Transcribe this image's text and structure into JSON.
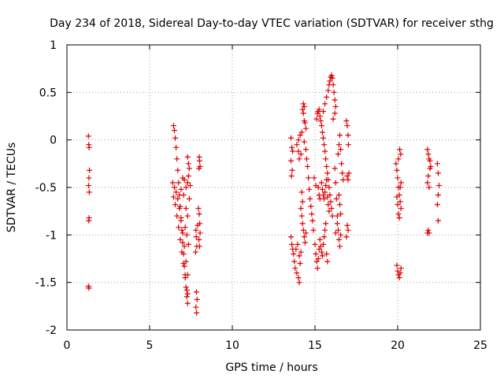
{
  "chart_data": {
    "type": "scatter",
    "title": "Day 234 of 2018, Sidereal Day-to-day VTEC variation (SDTVAR) for receiver sthg",
    "xlabel": "GPS time / hours",
    "ylabel": "SDTVAR / TECUs",
    "xlim": [
      0,
      25
    ],
    "ylim": [
      -2,
      1
    ],
    "xticks": [
      {
        "value": 0,
        "label": "0"
      },
      {
        "value": 5,
        "label": "5"
      },
      {
        "value": 10,
        "label": "10"
      },
      {
        "value": 15,
        "label": "15"
      },
      {
        "value": 20,
        "label": "20"
      },
      {
        "value": 25,
        "label": "25"
      }
    ],
    "yticks": [
      {
        "value": 1,
        "label": "1"
      },
      {
        "value": 0.5,
        "label": "0.5"
      },
      {
        "value": 0,
        "label": "0"
      },
      {
        "value": -0.5,
        "label": "-0.5"
      },
      {
        "value": -1,
        "label": "-1"
      },
      {
        "value": -1.5,
        "label": "-1.5"
      },
      {
        "value": -2,
        "label": "-2"
      }
    ],
    "grid": true,
    "marker": "+",
    "color": "#e00000",
    "series": [
      {
        "name": "sthg",
        "points": [
          [
            1.3,
            0.04
          ],
          [
            1.32,
            -0.05
          ],
          [
            1.34,
            -0.08
          ],
          [
            1.36,
            -0.32
          ],
          [
            1.33,
            -0.4
          ],
          [
            1.31,
            -0.48
          ],
          [
            1.35,
            -0.55
          ],
          [
            1.34,
            -0.82
          ],
          [
            1.32,
            -0.85
          ],
          [
            1.3,
            -1.54
          ],
          [
            1.33,
            -1.56
          ],
          [
            6.45,
            0.15
          ],
          [
            6.5,
            0.1
          ],
          [
            6.55,
            0.02
          ],
          [
            6.6,
            -0.08
          ],
          [
            6.65,
            -0.2
          ],
          [
            6.7,
            -0.32
          ],
          [
            6.75,
            -0.45
          ],
          [
            6.8,
            -0.58
          ],
          [
            6.85,
            -0.7
          ],
          [
            6.9,
            -0.82
          ],
          [
            6.95,
            -0.95
          ],
          [
            7.0,
            -1.08
          ],
          [
            7.05,
            -1.2
          ],
          [
            7.1,
            -1.33
          ],
          [
            7.15,
            -1.45
          ],
          [
            7.2,
            -1.55
          ],
          [
            7.25,
            -1.65
          ],
          [
            7.3,
            -1.72
          ],
          [
            6.4,
            -0.45
          ],
          [
            6.5,
            -0.5
          ],
          [
            6.6,
            -0.55
          ],
          [
            6.7,
            -0.62
          ],
          [
            6.8,
            -0.72
          ],
          [
            6.9,
            -0.85
          ],
          [
            7.0,
            -0.98
          ],
          [
            7.1,
            -1.12
          ],
          [
            7.2,
            -1.28
          ],
          [
            7.3,
            -1.42
          ],
          [
            6.45,
            -0.6
          ],
          [
            6.55,
            -0.68
          ],
          [
            6.65,
            -0.8
          ],
          [
            6.75,
            -0.92
          ],
          [
            6.85,
            -1.05
          ],
          [
            6.95,
            -1.18
          ],
          [
            7.05,
            -1.3
          ],
          [
            7.15,
            -1.42
          ],
          [
            7.25,
            -1.58
          ],
          [
            7.3,
            -1.62
          ],
          [
            7.1,
            -0.42
          ],
          [
            7.2,
            -0.5
          ],
          [
            7.3,
            -0.45
          ],
          [
            7.35,
            -0.38
          ],
          [
            7.35,
            -0.25
          ],
          [
            7.3,
            -0.18
          ],
          [
            7.2,
            -0.72
          ],
          [
            7.3,
            -0.8
          ],
          [
            7.4,
            -0.62
          ],
          [
            7.4,
            -0.3
          ],
          [
            7.45,
            -0.48
          ],
          [
            7.0,
            -0.4
          ],
          [
            6.9,
            -0.52
          ],
          [
            7.05,
            -0.58
          ],
          [
            7.15,
            -0.92
          ],
          [
            7.25,
            -1.0
          ],
          [
            7.35,
            -1.1
          ],
          [
            7.8,
            -0.95
          ],
          [
            7.82,
            -1.02
          ],
          [
            7.85,
            -1.12
          ],
          [
            7.78,
            -1.18
          ],
          [
            7.83,
            -1.6
          ],
          [
            7.87,
            -1.68
          ],
          [
            7.8,
            -1.76
          ],
          [
            7.84,
            -1.82
          ],
          [
            7.9,
            -0.9
          ],
          [
            8.0,
            -0.18
          ],
          [
            8.02,
            -0.22
          ],
          [
            8.05,
            -0.28
          ],
          [
            7.98,
            -0.3
          ],
          [
            8.0,
            -0.78
          ],
          [
            8.03,
            -0.88
          ],
          [
            8.05,
            -0.98
          ],
          [
            7.98,
            -1.05
          ],
          [
            8.02,
            -1.12
          ],
          [
            7.95,
            -0.72
          ],
          [
            13.55,
            0.02
          ],
          [
            13.6,
            -0.08
          ],
          [
            13.65,
            -0.12
          ],
          [
            13.55,
            -0.22
          ],
          [
            13.62,
            -0.32
          ],
          [
            13.58,
            -0.38
          ],
          [
            13.55,
            -1.02
          ],
          [
            13.6,
            -1.1
          ],
          [
            13.65,
            -1.15
          ],
          [
            13.7,
            -1.2
          ],
          [
            13.75,
            -1.28
          ],
          [
            13.8,
            -1.35
          ],
          [
            13.9,
            -1.4
          ],
          [
            14.0,
            -1.45
          ],
          [
            14.05,
            -1.5
          ],
          [
            13.85,
            -1.15
          ],
          [
            13.95,
            -1.1
          ],
          [
            14.05,
            -1.22
          ],
          [
            14.1,
            -1.3
          ],
          [
            14.15,
            -1.18
          ],
          [
            13.9,
            -0.05
          ],
          [
            14.0,
            0.0
          ],
          [
            14.1,
            0.05
          ],
          [
            14.0,
            -0.12
          ],
          [
            14.05,
            -0.2
          ],
          [
            14.15,
            -0.15
          ],
          [
            14.2,
            -0.55
          ],
          [
            14.25,
            -0.65
          ],
          [
            14.15,
            -0.72
          ],
          [
            14.2,
            -0.8
          ],
          [
            14.25,
            -0.88
          ],
          [
            14.3,
            -0.95
          ],
          [
            14.35,
            -1.02
          ],
          [
            14.4,
            -1.08
          ],
          [
            14.45,
            -0.98
          ],
          [
            14.25,
            0.32
          ],
          [
            14.3,
            0.38
          ],
          [
            14.35,
            0.35
          ],
          [
            14.3,
            0.28
          ],
          [
            14.35,
            0.2
          ],
          [
            14.4,
            0.18
          ],
          [
            14.45,
            0.12
          ],
          [
            14.2,
            0.08
          ],
          [
            14.35,
            -0.02
          ],
          [
            14.45,
            -0.1
          ],
          [
            14.5,
            -0.2
          ],
          [
            14.55,
            -0.28
          ],
          [
            14.6,
            -0.4
          ],
          [
            14.65,
            -0.52
          ],
          [
            14.7,
            -0.62
          ],
          [
            14.75,
            -0.7
          ],
          [
            14.8,
            -0.78
          ],
          [
            14.85,
            -0.85
          ],
          [
            14.9,
            -0.95
          ],
          [
            15.0,
            -1.1
          ],
          [
            15.05,
            -1.2
          ],
          [
            15.1,
            -1.28
          ],
          [
            15.15,
            -1.35
          ],
          [
            15.2,
            -1.25
          ],
          [
            15.25,
            -1.15
          ],
          [
            15.1,
            0.22
          ],
          [
            15.15,
            0.28
          ],
          [
            15.2,
            0.3
          ],
          [
            15.25,
            0.32
          ],
          [
            15.3,
            0.25
          ],
          [
            15.35,
            0.2
          ],
          [
            15.4,
            0.15
          ],
          [
            15.45,
            0.08
          ],
          [
            15.5,
            0.02
          ],
          [
            15.55,
            -0.05
          ],
          [
            15.6,
            -0.12
          ],
          [
            15.65,
            -0.2
          ],
          [
            15.7,
            -0.28
          ],
          [
            15.75,
            -0.35
          ],
          [
            15.8,
            -0.42
          ],
          [
            15.85,
            -0.5
          ],
          [
            15.9,
            -0.58
          ],
          [
            15.95,
            -0.65
          ],
          [
            16.0,
            -0.72
          ],
          [
            16.05,
            -0.8
          ],
          [
            15.5,
            0.3
          ],
          [
            15.6,
            0.38
          ],
          [
            15.7,
            0.45
          ],
          [
            15.8,
            0.52
          ],
          [
            15.85,
            0.58
          ],
          [
            15.9,
            0.62
          ],
          [
            15.95,
            0.66
          ],
          [
            16.0,
            0.68
          ],
          [
            16.05,
            0.65
          ],
          [
            16.1,
            0.58
          ],
          [
            16.15,
            0.5
          ],
          [
            16.2,
            0.42
          ],
          [
            16.25,
            0.35
          ],
          [
            16.2,
            0.28
          ],
          [
            16.1,
            0.22
          ],
          [
            15.4,
            -0.45
          ],
          [
            15.45,
            -0.52
          ],
          [
            15.5,
            -0.58
          ],
          [
            15.55,
            -0.62
          ],
          [
            15.6,
            -0.55
          ],
          [
            15.65,
            -0.48
          ],
          [
            15.7,
            -0.42
          ],
          [
            15.75,
            -0.6
          ],
          [
            15.8,
            -0.68
          ],
          [
            15.85,
            -0.75
          ],
          [
            15.3,
            -1.05
          ],
          [
            15.35,
            -1.12
          ],
          [
            15.4,
            -1.18
          ],
          [
            15.45,
            -1.22
          ],
          [
            15.5,
            -1.1
          ],
          [
            15.55,
            -1.02
          ],
          [
            15.6,
            -0.95
          ],
          [
            15.65,
            -0.88
          ],
          [
            15.7,
            -1.2
          ],
          [
            15.75,
            -1.28
          ],
          [
            15.2,
            -0.5
          ],
          [
            15.25,
            -0.58
          ],
          [
            15.3,
            -0.62
          ],
          [
            15.05,
            -0.48
          ],
          [
            14.95,
            -0.4
          ],
          [
            16.2,
            -0.3
          ],
          [
            16.25,
            -0.45
          ],
          [
            16.3,
            -0.62
          ],
          [
            16.35,
            -0.8
          ],
          [
            16.4,
            -0.95
          ],
          [
            16.45,
            -1.05
          ],
          [
            16.5,
            -1.12
          ],
          [
            16.55,
            -1.0
          ],
          [
            16.35,
            -0.88
          ],
          [
            16.25,
            -0.98
          ],
          [
            16.4,
            -0.15
          ],
          [
            16.45,
            -0.05
          ],
          [
            16.5,
            0.05
          ],
          [
            16.55,
            -0.1
          ],
          [
            16.6,
            -0.25
          ],
          [
            16.65,
            -0.35
          ],
          [
            16.7,
            -0.42
          ],
          [
            16.45,
            -0.58
          ],
          [
            16.5,
            -0.68
          ],
          [
            16.55,
            -0.78
          ],
          [
            16.9,
            0.2
          ],
          [
            16.95,
            0.15
          ],
          [
            17.0,
            0.05
          ],
          [
            17.02,
            -0.05
          ],
          [
            16.95,
            -0.38
          ],
          [
            17.0,
            -0.42
          ],
          [
            17.05,
            -0.35
          ],
          [
            16.95,
            -0.9
          ],
          [
            17.0,
            -0.95
          ],
          [
            16.9,
            -1.02
          ],
          [
            19.9,
            -0.25
          ],
          [
            19.95,
            -0.32
          ],
          [
            20.0,
            -0.4
          ],
          [
            20.05,
            -0.5
          ],
          [
            20.1,
            -0.58
          ],
          [
            20.15,
            -0.65
          ],
          [
            20.2,
            -0.72
          ],
          [
            19.95,
            -0.6
          ],
          [
            20.0,
            -0.68
          ],
          [
            20.05,
            -0.78
          ],
          [
            20.1,
            -0.82
          ],
          [
            20.15,
            -0.5
          ],
          [
            20.2,
            -0.45
          ],
          [
            20.05,
            -0.2
          ],
          [
            20.12,
            -0.1
          ],
          [
            20.18,
            -0.15
          ],
          [
            19.95,
            -1.32
          ],
          [
            20.0,
            -1.38
          ],
          [
            20.05,
            -1.42
          ],
          [
            20.1,
            -1.45
          ],
          [
            20.15,
            -1.4
          ],
          [
            20.2,
            -1.35
          ],
          [
            21.8,
            -0.1
          ],
          [
            21.85,
            -0.15
          ],
          [
            21.9,
            -0.2
          ],
          [
            21.95,
            -0.3
          ],
          [
            21.85,
            -0.38
          ],
          [
            21.8,
            -0.45
          ],
          [
            21.9,
            -0.5
          ],
          [
            21.95,
            -0.22
          ],
          [
            22.0,
            -0.28
          ],
          [
            21.85,
            -0.95
          ],
          [
            21.9,
            -0.98
          ],
          [
            21.8,
            -0.98
          ],
          [
            22.4,
            -0.25
          ],
          [
            22.45,
            -0.35
          ],
          [
            22.5,
            -0.48
          ],
          [
            22.45,
            -0.58
          ],
          [
            22.4,
            -0.68
          ],
          [
            22.45,
            -0.85
          ]
        ]
      }
    ]
  }
}
